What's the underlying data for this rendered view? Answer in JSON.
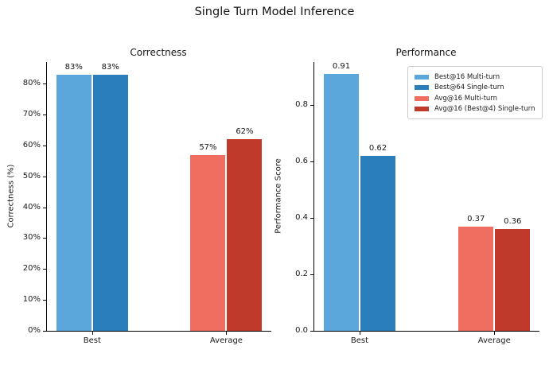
{
  "figure": {
    "title": "Single Turn Model Inference",
    "background": "#ffffff"
  },
  "colors": {
    "light_blue": "#5BA7DB",
    "dark_blue": "#2B7EBC",
    "light_red": "#EF6E60",
    "dark_red": "#C03A2B",
    "spine": "#000000",
    "legend_border": "#cccccc"
  },
  "chart_data": [
    {
      "type": "bar",
      "title": "Correctness",
      "xlabel": "",
      "ylabel": "Correctness (%)",
      "categories": [
        "Best",
        "Average"
      ],
      "series": [
        {
          "name": "Best@16 Multi-turn",
          "color": "#5BA7DB",
          "values": [
            83,
            null
          ],
          "value_labels": [
            "83%",
            null
          ]
        },
        {
          "name": "Best@64 Single-turn",
          "color": "#2B7EBC",
          "values": [
            83,
            null
          ],
          "value_labels": [
            "83%",
            null
          ]
        },
        {
          "name": "Avg@16 Multi-turn",
          "color": "#EF6E60",
          "values": [
            null,
            57
          ],
          "value_labels": [
            null,
            "57%"
          ]
        },
        {
          "name": "Avg@16 (Best@4) Single-turn",
          "color": "#C03A2B",
          "values": [
            null,
            62
          ],
          "value_labels": [
            null,
            "62%"
          ]
        }
      ],
      "ylim": [
        0,
        87
      ],
      "yticks": {
        "values": [
          0,
          10,
          20,
          30,
          40,
          50,
          60,
          70,
          80
        ],
        "labels": [
          "0%",
          "10%",
          "20%",
          "30%",
          "40%",
          "50%",
          "60%",
          "70%",
          "80%"
        ]
      },
      "grid": false,
      "legend": null
    },
    {
      "type": "bar",
      "title": "Performance",
      "xlabel": "",
      "ylabel": "Performance Score",
      "categories": [
        "Best",
        "Average"
      ],
      "series": [
        {
          "name": "Best@16 Multi-turn",
          "color": "#5BA7DB",
          "values": [
            0.91,
            null
          ],
          "value_labels": [
            "0.91",
            null
          ]
        },
        {
          "name": "Best@64 Single-turn",
          "color": "#2B7EBC",
          "values": [
            0.62,
            null
          ],
          "value_labels": [
            "0.62",
            null
          ]
        },
        {
          "name": "Avg@16 Multi-turn",
          "color": "#EF6E60",
          "values": [
            null,
            0.37
          ],
          "value_labels": [
            null,
            "0.37"
          ]
        },
        {
          "name": "Avg@16 (Best@4) Single-turn",
          "color": "#C03A2B",
          "values": [
            null,
            0.36
          ],
          "value_labels": [
            null,
            "0.36"
          ]
        }
      ],
      "ylim": [
        0,
        0.952
      ],
      "yticks": {
        "values": [
          0,
          0.2,
          0.4,
          0.6,
          0.8
        ],
        "labels": [
          "0.0",
          "0.2",
          "0.4",
          "0.6",
          "0.8"
        ]
      },
      "grid": false,
      "legend": {
        "position": "upper right",
        "entries": [
          "Best@16 Multi-turn",
          "Best@64 Single-turn",
          "Avg@16 Multi-turn",
          "Avg@16 (Best@4) Single-turn"
        ]
      }
    }
  ]
}
